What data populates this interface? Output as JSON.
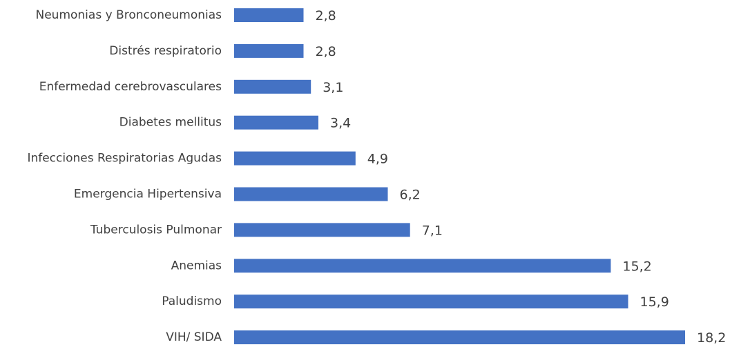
{
  "chart_data": {
    "type": "bar",
    "orientation": "horizontal",
    "categories": [
      "Neumonias y Bronconeumonias",
      "Distrés respiratorio",
      "Enfermedad cerebrovasculares",
      "Diabetes mellitus",
      "Infecciones Respiratorias Agudas",
      "Emergencia Hipertensiva",
      "Tuberculosis Pulmonar",
      "Anemias",
      "Paludismo",
      "VIH/ SIDA"
    ],
    "values": [
      2.8,
      2.8,
      3.1,
      3.4,
      4.9,
      6.2,
      7.1,
      15.2,
      15.9,
      18.2
    ],
    "value_labels": [
      "2,8",
      "2,8",
      "3,1",
      "3,4",
      "4,9",
      "6,2",
      "7,1",
      "15,2",
      "15,9",
      "18,2"
    ],
    "xlim": [
      0,
      18.2
    ],
    "grid": false,
    "legend": "none",
    "bar_color": "#4472C4",
    "text_color": "#404040"
  }
}
